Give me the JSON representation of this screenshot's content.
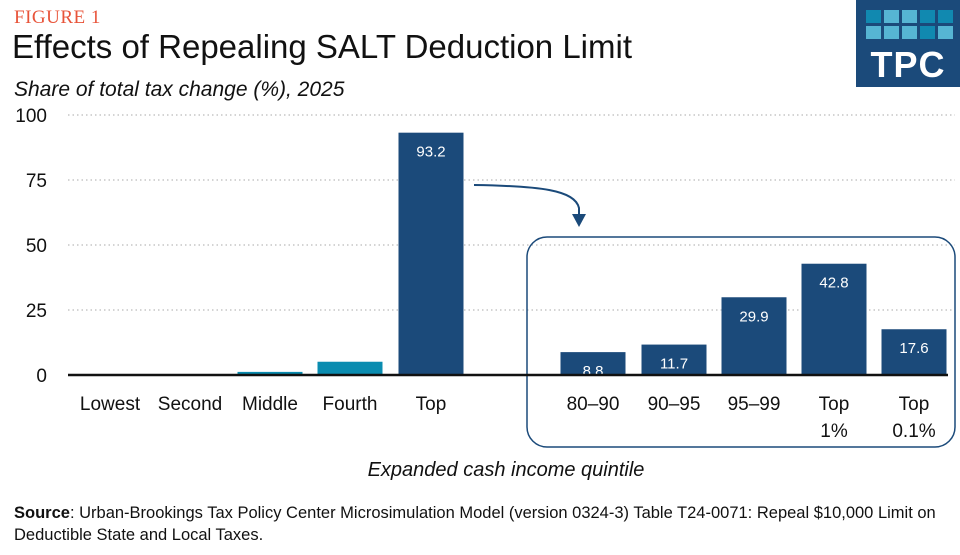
{
  "figure_label": "FIGURE 1",
  "logo": {
    "text": "TPC",
    "cell_colors": [
      "#1189b0",
      "#56b5d3",
      "#56b5d3",
      "#1189b0",
      "#1189b0",
      "#56b5d3",
      "#56b5d3",
      "#56b5d3",
      "#1189b0",
      "#56b5d3"
    ]
  },
  "source": {
    "label": "Source",
    "text": ": Urban-Brookings Tax Policy Center Microsimulation Model (version 0324-3) Table T24-0071: Repeal $10,000 Limit on Deductible State and Local Taxes."
  },
  "chart_data": {
    "type": "bar",
    "title": "Effects of Repealing SALT Deduction Limit",
    "subtitle": "Share of total tax change (%), 2025",
    "xlabel": "Expanded cash income quintile",
    "ylabel": "",
    "ylim": [
      0,
      100
    ],
    "yticks": [
      "0",
      "25",
      "50",
      "75",
      "100"
    ],
    "grid": true,
    "colors": {
      "quintile_light": "#0a8cb0",
      "top": "#1b4a7a",
      "axis": "#111111",
      "grid": "#bbbbbb"
    },
    "groups": [
      {
        "categories": [
          "Lowest",
          "Second",
          "Middle",
          "Fourth",
          "Top"
        ],
        "values": [
          0.0,
          0.0,
          1.2,
          5.1,
          93.2
        ],
        "data_labels": [
          "",
          "",
          "",
          "",
          "93.2"
        ]
      },
      {
        "categories": [
          "80–90",
          "90–95",
          "95–99",
          "Top 1%",
          "Top 0.1%"
        ],
        "values": [
          8.8,
          11.7,
          29.9,
          42.8,
          17.6
        ],
        "data_labels": [
          "8.8",
          "11.7",
          "29.9",
          "42.8",
          "17.6"
        ]
      }
    ]
  }
}
